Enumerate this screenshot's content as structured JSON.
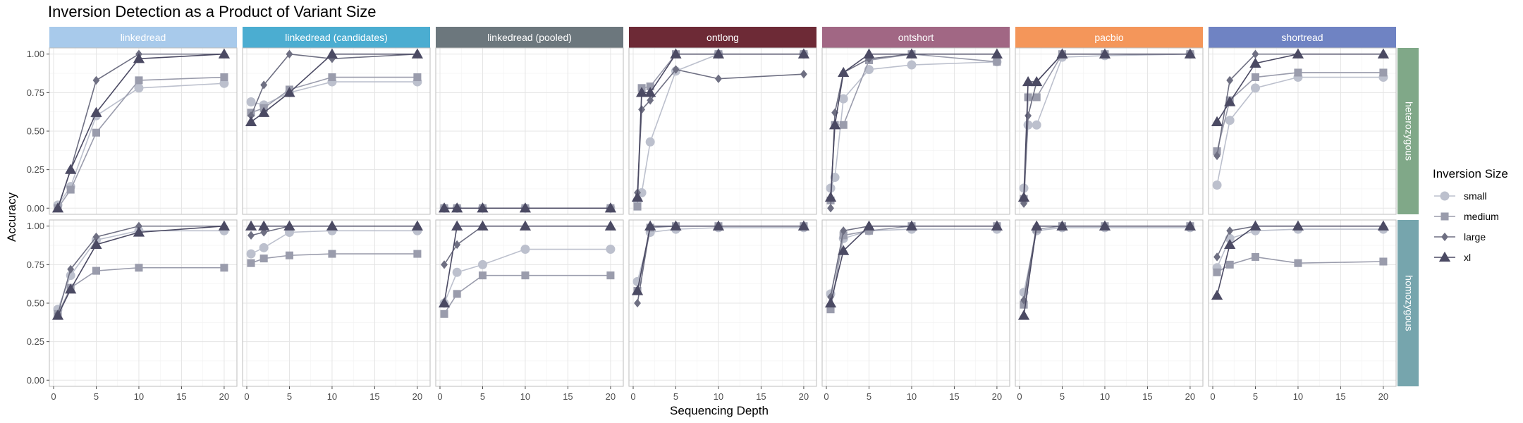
{
  "chart_data": {
    "type": "line",
    "title": "Inversion Detection as a Product of Variant Size",
    "xlabel": "Sequencing Depth",
    "ylabel": "Accuracy",
    "xlim": [
      0,
      21
    ],
    "ylim": [
      0,
      1
    ],
    "x_ticks": [
      0,
      5,
      10,
      15,
      20
    ],
    "y_ticks": [
      0,
      0.25,
      0.5,
      0.75,
      1.0
    ],
    "y_tick_labels": [
      "0.00",
      "0.25",
      "0.50",
      "0.75",
      "1.00"
    ],
    "grid": true,
    "legend_position": "right",
    "legend_title": "Inversion Size",
    "series_styles": [
      {
        "name": "small",
        "color": "#bcc0cd",
        "marker": "circle"
      },
      {
        "name": "medium",
        "color": "#9a9cac",
        "marker": "square"
      },
      {
        "name": "large",
        "color": "#6e6f82",
        "marker": "diamond"
      },
      {
        "name": "xl",
        "color": "#4b4a63",
        "marker": "triangle"
      }
    ],
    "columns": [
      {
        "label": "linkedread",
        "color": "#a8caeb"
      },
      {
        "label": "linkedread (candidates)",
        "color": "#4badd1"
      },
      {
        "label": "linkedread (pooled)",
        "color": "#6c777d"
      },
      {
        "label": "ontlong",
        "color": "#6d2a36"
      },
      {
        "label": "ontshort",
        "color": "#a16784"
      },
      {
        "label": "pacbio",
        "color": "#f4965a"
      },
      {
        "label": "shortread",
        "color": "#6f83c3"
      }
    ],
    "rows": [
      {
        "label": "heterozygous",
        "color": "#80a888"
      },
      {
        "label": "homozygous",
        "color": "#76a5ad"
      }
    ],
    "panels": [
      {
        "column": "linkedread",
        "row": "heterozygous",
        "x": [
          0.5,
          2,
          5,
          10,
          20
        ],
        "series": [
          {
            "name": "small",
            "values": [
              0.02,
              0.14,
              0.6,
              0.78,
              0.81
            ]
          },
          {
            "name": "medium",
            "values": [
              0.0,
              0.12,
              0.49,
              0.83,
              0.85
            ]
          },
          {
            "name": "large",
            "values": [
              0.0,
              0.25,
              0.83,
              1.0,
              1.0
            ]
          },
          {
            "name": "xl",
            "values": [
              0.0,
              0.25,
              0.62,
              0.97,
              1.0
            ]
          }
        ]
      },
      {
        "column": "linkedread (candidates)",
        "row": "heterozygous",
        "x": [
          0.5,
          2,
          5,
          10,
          20
        ],
        "series": [
          {
            "name": "small",
            "values": [
              0.69,
              0.67,
              0.75,
              0.82,
              0.82
            ]
          },
          {
            "name": "medium",
            "values": [
              0.62,
              0.65,
              0.77,
              0.85,
              0.85
            ]
          },
          {
            "name": "large",
            "values": [
              0.6,
              0.8,
              1.0,
              0.97,
              1.0
            ]
          },
          {
            "name": "xl",
            "values": [
              0.56,
              0.62,
              0.75,
              1.0,
              1.0
            ]
          }
        ]
      },
      {
        "column": "linkedread (pooled)",
        "row": "heterozygous",
        "x": [
          0.5,
          2,
          5,
          10,
          20
        ],
        "series": [
          {
            "name": "small",
            "values": [
              0.0,
              0.0,
              0.0,
              0.0,
              0.0
            ]
          },
          {
            "name": "medium",
            "values": [
              0.0,
              0.0,
              0.0,
              0.0,
              0.0
            ]
          },
          {
            "name": "large",
            "values": [
              0.0,
              0.0,
              0.0,
              0.0,
              0.0
            ]
          },
          {
            "name": "xl",
            "values": [
              0.0,
              0.0,
              0.0,
              0.0,
              0.0
            ]
          }
        ]
      },
      {
        "column": "ontlong",
        "row": "heterozygous",
        "x": [
          0.5,
          1,
          2,
          5,
          10,
          20
        ],
        "series": [
          {
            "name": "small",
            "values": [
              0.05,
              0.1,
              0.43,
              0.89,
              1.0,
              1.0
            ]
          },
          {
            "name": "medium",
            "values": [
              0.01,
              0.78,
              0.79,
              1.0,
              1.0,
              1.0
            ]
          },
          {
            "name": "large",
            "values": [
              0.1,
              0.64,
              0.7,
              0.9,
              0.84,
              0.87
            ]
          },
          {
            "name": "xl",
            "values": [
              0.07,
              0.75,
              0.75,
              1.0,
              1.0,
              1.0
            ]
          }
        ]
      },
      {
        "column": "ontshort",
        "row": "heterozygous",
        "x": [
          0.5,
          1,
          2,
          5,
          10,
          20
        ],
        "series": [
          {
            "name": "small",
            "values": [
              0.13,
              0.2,
              0.71,
              0.9,
              0.93,
              0.95
            ]
          },
          {
            "name": "medium",
            "values": [
              0.05,
              0.54,
              0.54,
              0.96,
              1.0,
              0.95
            ]
          },
          {
            "name": "large",
            "values": [
              0.0,
              0.62,
              0.88,
              0.97,
              1.0,
              1.0
            ]
          },
          {
            "name": "xl",
            "values": [
              0.07,
              0.54,
              0.88,
              1.0,
              1.0,
              1.0
            ]
          }
        ]
      },
      {
        "column": "pacbio",
        "row": "heterozygous",
        "x": [
          0.5,
          1,
          2,
          5,
          10,
          20
        ],
        "series": [
          {
            "name": "small",
            "values": [
              0.13,
              0.54,
              0.54,
              0.98,
              0.99,
              1.0
            ]
          },
          {
            "name": "medium",
            "values": [
              0.06,
              0.72,
              0.72,
              1.0,
              1.0,
              1.0
            ]
          },
          {
            "name": "large",
            "values": [
              0.03,
              0.6,
              0.82,
              1.0,
              1.0,
              1.0
            ]
          },
          {
            "name": "xl",
            "values": [
              0.07,
              0.82,
              0.82,
              1.0,
              1.0,
              1.0
            ]
          }
        ]
      },
      {
        "column": "shortread",
        "row": "heterozygous",
        "x": [
          0.5,
          2,
          5,
          10,
          20
        ],
        "series": [
          {
            "name": "small",
            "values": [
              0.15,
              0.57,
              0.78,
              0.85,
              0.85
            ]
          },
          {
            "name": "medium",
            "values": [
              0.37,
              0.7,
              0.85,
              0.88,
              0.88
            ]
          },
          {
            "name": "large",
            "values": [
              0.34,
              0.83,
              1.0,
              1.0,
              1.0
            ]
          },
          {
            "name": "xl",
            "values": [
              0.56,
              0.69,
              0.94,
              1.0,
              1.0
            ]
          }
        ]
      },
      {
        "column": "linkedread",
        "row": "homozygous",
        "x": [
          0.5,
          2,
          5,
          10,
          20
        ],
        "series": [
          {
            "name": "small",
            "values": [
              0.46,
              0.68,
              0.91,
              0.97,
              0.97
            ]
          },
          {
            "name": "medium",
            "values": [
              0.43,
              0.6,
              0.71,
              0.73,
              0.73
            ]
          },
          {
            "name": "large",
            "values": [
              0.43,
              0.72,
              0.93,
              1.0,
              1.0
            ]
          },
          {
            "name": "xl",
            "values": [
              0.42,
              0.59,
              0.88,
              0.96,
              1.0
            ]
          }
        ]
      },
      {
        "column": "linkedread (candidates)",
        "row": "homozygous",
        "x": [
          0.5,
          2,
          5,
          10,
          20
        ],
        "series": [
          {
            "name": "small",
            "values": [
              0.82,
              0.86,
              0.96,
              0.97,
              0.97
            ]
          },
          {
            "name": "medium",
            "values": [
              0.76,
              0.79,
              0.81,
              0.82,
              0.82
            ]
          },
          {
            "name": "large",
            "values": [
              0.94,
              0.96,
              1.0,
              1.0,
              1.0
            ]
          },
          {
            "name": "xl",
            "values": [
              1.0,
              1.0,
              1.0,
              1.0,
              1.0
            ]
          }
        ]
      },
      {
        "column": "linkedread (pooled)",
        "row": "homozygous",
        "x": [
          0.5,
          2,
          5,
          10,
          20
        ],
        "series": [
          {
            "name": "small",
            "values": [
              0.5,
              0.7,
              0.75,
              0.85,
              0.85
            ]
          },
          {
            "name": "medium",
            "values": [
              0.43,
              0.56,
              0.68,
              0.68,
              0.68
            ]
          },
          {
            "name": "large",
            "values": [
              0.75,
              0.88,
              1.0,
              1.0,
              1.0
            ]
          },
          {
            "name": "xl",
            "values": [
              0.5,
              1.0,
              1.0,
              1.0,
              1.0
            ]
          }
        ]
      },
      {
        "column": "ontlong",
        "row": "homozygous",
        "x": [
          0.5,
          2,
          5,
          10,
          20
        ],
        "series": [
          {
            "name": "small",
            "values": [
              0.64,
              0.96,
              0.98,
              0.99,
              0.99
            ]
          },
          {
            "name": "medium",
            "values": [
              0.58,
              0.99,
              1.0,
              1.0,
              1.0
            ]
          },
          {
            "name": "large",
            "values": [
              0.5,
              1.0,
              1.0,
              1.0,
              1.0
            ]
          },
          {
            "name": "xl",
            "values": [
              0.58,
              1.0,
              1.0,
              1.0,
              1.0
            ]
          }
        ]
      },
      {
        "column": "ontshort",
        "row": "homozygous",
        "x": [
          0.5,
          2,
          5,
          10,
          20
        ],
        "series": [
          {
            "name": "small",
            "values": [
              0.56,
              0.92,
              0.97,
              0.98,
              0.98
            ]
          },
          {
            "name": "medium",
            "values": [
              0.46,
              0.94,
              0.97,
              1.0,
              1.0
            ]
          },
          {
            "name": "large",
            "values": [
              0.54,
              0.97,
              1.0,
              1.0,
              1.0
            ]
          },
          {
            "name": "xl",
            "values": [
              0.5,
              0.84,
              1.0,
              1.0,
              1.0
            ]
          }
        ]
      },
      {
        "column": "pacbio",
        "row": "homozygous",
        "x": [
          0.5,
          2,
          5,
          10,
          20
        ],
        "series": [
          {
            "name": "small",
            "values": [
              0.57,
              0.97,
              0.99,
              0.99,
              0.99
            ]
          },
          {
            "name": "medium",
            "values": [
              0.49,
              0.98,
              1.0,
              1.0,
              1.0
            ]
          },
          {
            "name": "large",
            "values": [
              0.52,
              1.0,
              1.0,
              1.0,
              1.0
            ]
          },
          {
            "name": "xl",
            "values": [
              0.42,
              1.0,
              1.0,
              1.0,
              1.0
            ]
          }
        ]
      },
      {
        "column": "shortread",
        "row": "homozygous",
        "x": [
          0.5,
          2,
          5,
          10,
          20
        ],
        "series": [
          {
            "name": "small",
            "values": [
              0.73,
              0.92,
              0.97,
              0.98,
              0.98
            ]
          },
          {
            "name": "medium",
            "values": [
              0.7,
              0.75,
              0.8,
              0.76,
              0.77
            ]
          },
          {
            "name": "large",
            "values": [
              0.8,
              0.97,
              1.0,
              1.0,
              1.0
            ]
          },
          {
            "name": "xl",
            "values": [
              0.55,
              0.88,
              1.0,
              1.0,
              1.0
            ]
          }
        ]
      }
    ]
  }
}
